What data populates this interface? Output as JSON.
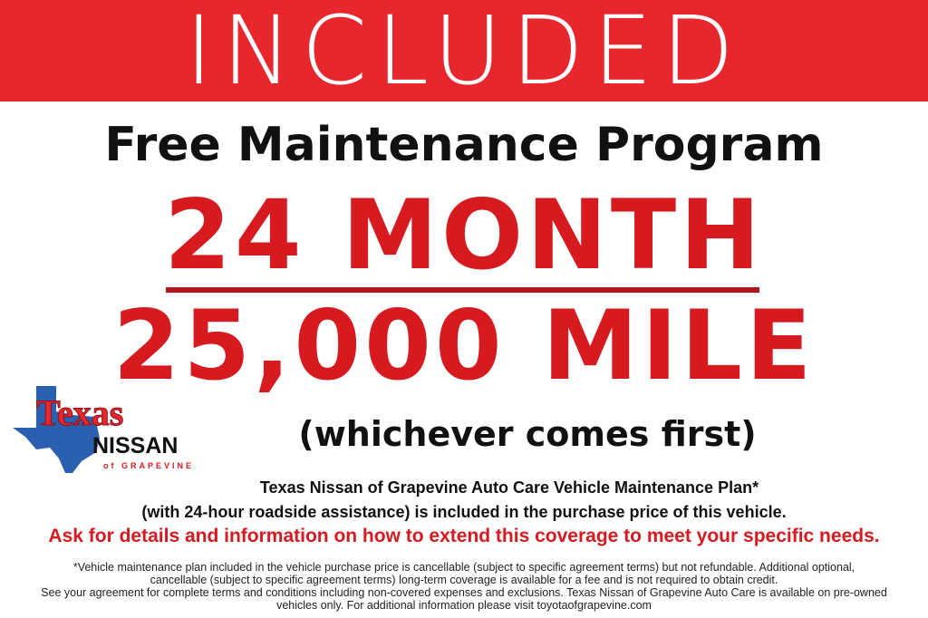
{
  "banner": {
    "text": "INCLUDED",
    "color": "#e8262e"
  },
  "subtitle": "Free Maintenance Program",
  "term": {
    "months": "24 MONTH",
    "miles": "25,000 MILE",
    "note": "(whichever comes first)",
    "color": "#d71920"
  },
  "logo": {
    "line1": "Texas",
    "line2": "NISSAN",
    "line3": "of GRAPEVINE"
  },
  "info": {
    "line1": "Texas Nissan of Grapevine Auto Care Vehicle Maintenance Plan*",
    "line2": "(with 24-hour roadside assistance) is included in the purchase price of this vehicle.",
    "cta": "Ask for details and information on how to extend this coverage to meet your specific needs."
  },
  "fine_print": [
    "*Vehicle maintenance plan included in the vehicle purchase price is cancellable (subject to specific agreement terms) but not refundable. Additional optional,",
    "cancellable (subject to specific agreement terms) long-term coverage is available for a fee and is not required to obtain credit.",
    "See your agreement for complete terms and conditions including non-covered expenses and exclusions. Texas Nissan of Grapevine Auto Care is available on pre-owned",
    "vehicles only. For additional information please visit toyotaofgrapevine.com"
  ]
}
